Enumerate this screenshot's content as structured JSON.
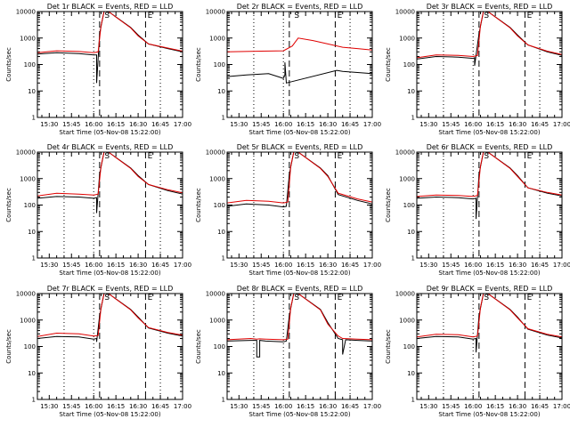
{
  "chart_data": [
    {
      "type": "line",
      "title": "Det 1r BLACK = Events, RED = LLD",
      "ylabel": "Counts/sec",
      "xlabel": "Start Time (05-Nov-08 15:22:00)",
      "y_scale": "log",
      "ylim": [
        1,
        10000
      ],
      "y_ticks": [
        "1",
        "10",
        "100",
        "1000",
        "10000"
      ],
      "x_range": [
        "15:22",
        "17:00"
      ],
      "x_ticks": [
        "15:30",
        "15:45",
        "16:00",
        "16:15",
        "16:30",
        "16:45",
        "17:00"
      ],
      "vertical_dotted_lines": [
        "15:40",
        "16:00",
        "16:45"
      ],
      "vertical_dashed_lines": [
        "16:04",
        "16:35"
      ],
      "markers": [
        {
          "label": "S",
          "x": "16:09"
        },
        {
          "label": "E",
          "x": "16:38"
        }
      ],
      "series": [
        {
          "name": "Events",
          "color": "#000000",
          "x": [
            "15:22",
            "15:35",
            "15:50",
            "16:00",
            "16:02",
            "16:02",
            "16:04",
            "16:07",
            "16:10",
            "16:25",
            "16:30",
            "16:37",
            "16:50",
            "17:00"
          ],
          "y": [
            250,
            280,
            260,
            230,
            230,
            20,
            1500,
            10000,
            10000,
            2500,
            1300,
            600,
            400,
            300
          ]
        },
        {
          "name": "LLD",
          "color": "#e00000",
          "x": [
            "15:22",
            "15:35",
            "15:50",
            "16:00",
            "16:03",
            "16:05",
            "16:07",
            "16:10",
            "16:25",
            "16:30",
            "16:37",
            "16:50",
            "17:00"
          ],
          "y": [
            280,
            330,
            310,
            280,
            300,
            3000,
            10000,
            10000,
            2400,
            1200,
            600,
            420,
            320
          ]
        }
      ]
    },
    {
      "type": "line",
      "title": "Det 2r BLACK = Events, RED = LLD",
      "ylabel": "Counts/sec",
      "xlabel": "Start Time (05-Nov-08 15:22:00)",
      "y_scale": "log",
      "ylim": [
        1,
        10000
      ],
      "y_ticks": [
        "1",
        "10",
        "100",
        "1000",
        "10000"
      ],
      "x_range": [
        "15:22",
        "17:00"
      ],
      "x_ticks": [
        "15:30",
        "15:45",
        "16:00",
        "16:15",
        "16:30",
        "16:45",
        "17:00"
      ],
      "vertical_dotted_lines": [
        "15:40",
        "16:00",
        "16:45"
      ],
      "vertical_dashed_lines": [
        "16:04",
        "16:35"
      ],
      "markers": [
        {
          "label": "S",
          "x": "16:09"
        },
        {
          "label": "E",
          "x": "16:38"
        }
      ],
      "series": [
        {
          "name": "Events",
          "color": "#000000",
          "x": [
            "15:22",
            "15:35",
            "15:50",
            "16:00",
            "16:01",
            "16:01",
            "16:02",
            "16:36",
            "16:40",
            "16:50",
            "17:00"
          ],
          "y": [
            35,
            40,
            45,
            30,
            40,
            120,
            20,
            60,
            55,
            50,
            45
          ]
        },
        {
          "name": "LLD",
          "color": "#e00000",
          "x": [
            "15:22",
            "15:45",
            "16:00",
            "16:06",
            "16:10",
            "16:20",
            "16:30",
            "16:40",
            "16:50",
            "17:00"
          ],
          "y": [
            300,
            320,
            330,
            500,
            1000,
            800,
            600,
            450,
            400,
            350
          ]
        }
      ]
    },
    {
      "type": "line",
      "title": "Det 3r BLACK = Events, RED = LLD",
      "ylabel": "Counts/sec",
      "xlabel": "Start Time (05-Nov-08 15:22:00)",
      "y_scale": "log",
      "ylim": [
        1,
        10000
      ],
      "y_ticks": [
        "1",
        "10",
        "100",
        "1000",
        "10000"
      ],
      "x_range": [
        "15:22",
        "17:00"
      ],
      "x_ticks": [
        "15:30",
        "15:45",
        "16:00",
        "16:15",
        "16:30",
        "16:45",
        "17:00"
      ],
      "vertical_dotted_lines": [
        "15:40",
        "16:00",
        "16:45"
      ],
      "vertical_dashed_lines": [
        "16:04",
        "16:35"
      ],
      "markers": [
        {
          "label": "S",
          "x": "16:09"
        },
        {
          "label": "E",
          "x": "16:38"
        }
      ],
      "series": [
        {
          "name": "Events",
          "color": "#000000",
          "x": [
            "15:22",
            "15:35",
            "15:50",
            "16:00",
            "16:01",
            "16:01",
            "16:04",
            "16:07",
            "16:10",
            "16:25",
            "16:30",
            "16:37",
            "16:50",
            "17:00"
          ],
          "y": [
            160,
            200,
            190,
            170,
            180,
            90,
            1500,
            10000,
            10000,
            2500,
            1300,
            550,
            300,
            220
          ]
        },
        {
          "name": "LLD",
          "color": "#e00000",
          "x": [
            "15:22",
            "15:35",
            "15:50",
            "16:00",
            "16:03",
            "16:05",
            "16:07",
            "16:10",
            "16:25",
            "16:30",
            "16:37",
            "16:50",
            "17:00"
          ],
          "y": [
            180,
            230,
            220,
            200,
            220,
            3000,
            10000,
            10000,
            2400,
            1200,
            550,
            320,
            240
          ]
        }
      ]
    },
    {
      "type": "line",
      "title": "Det 4r BLACK = Events, RED = LLD",
      "ylabel": "Counts/sec",
      "xlabel": "Start Time (05-Nov-08 15:22:00)",
      "y_scale": "log",
      "ylim": [
        1,
        10000
      ],
      "y_ticks": [
        "1",
        "10",
        "100",
        "1000",
        "10000"
      ],
      "x_range": [
        "15:22",
        "17:00"
      ],
      "x_ticks": [
        "15:30",
        "15:45",
        "16:00",
        "16:15",
        "16:30",
        "16:45",
        "17:00"
      ],
      "vertical_dotted_lines": [
        "15:40",
        "16:00",
        "16:45"
      ],
      "vertical_dashed_lines": [
        "16:04",
        "16:35"
      ],
      "markers": [
        {
          "label": "S",
          "x": "16:09"
        },
        {
          "label": "E",
          "x": "16:38"
        }
      ],
      "series": [
        {
          "name": "Events",
          "color": "#000000",
          "x": [
            "15:22",
            "15:35",
            "15:50",
            "16:00",
            "16:02",
            "16:02",
            "16:04",
            "16:07",
            "16:10",
            "16:25",
            "16:30",
            "16:37",
            "16:50",
            "17:00"
          ],
          "y": [
            180,
            210,
            200,
            180,
            190,
            50,
            1500,
            10000,
            10000,
            2500,
            1300,
            600,
            350,
            260
          ]
        },
        {
          "name": "LLD",
          "color": "#e00000",
          "x": [
            "15:22",
            "15:35",
            "15:50",
            "16:00",
            "16:03",
            "16:05",
            "16:07",
            "16:10",
            "16:25",
            "16:30",
            "16:37",
            "16:50",
            "17:00"
          ],
          "y": [
            220,
            280,
            260,
            240,
            260,
            3000,
            10000,
            10000,
            2400,
            1200,
            600,
            380,
            290
          ]
        }
      ]
    },
    {
      "type": "line",
      "title": "Det 5r BLACK = Events, RED = LLD",
      "ylabel": "Counts/sec",
      "xlabel": "Start Time (05-Nov-08 15:22:00)",
      "y_scale": "log",
      "ylim": [
        1,
        10000
      ],
      "y_ticks": [
        "1",
        "10",
        "100",
        "1000",
        "10000"
      ],
      "x_range": [
        "15:22",
        "17:00"
      ],
      "x_ticks": [
        "15:30",
        "15:45",
        "16:00",
        "16:15",
        "16:30",
        "16:45",
        "17:00"
      ],
      "vertical_dotted_lines": [
        "15:40",
        "16:00",
        "16:45"
      ],
      "vertical_dashed_lines": [
        "16:04",
        "16:35"
      ],
      "markers": [
        {
          "label": "S",
          "x": "16:09"
        },
        {
          "label": "E",
          "x": "16:38"
        }
      ],
      "series": [
        {
          "name": "Events",
          "color": "#000000",
          "x": [
            "15:22",
            "15:35",
            "15:50",
            "16:00",
            "16:02",
            "16:04",
            "16:07",
            "16:10",
            "16:25",
            "16:30",
            "16:37",
            "16:50",
            "17:00"
          ],
          "y": [
            90,
            110,
            100,
            85,
            90,
            1500,
            10000,
            10000,
            2500,
            1300,
            250,
            150,
            110
          ]
        },
        {
          "name": "LLD",
          "color": "#e00000",
          "x": [
            "15:22",
            "15:35",
            "15:50",
            "16:00",
            "16:03",
            "16:05",
            "16:07",
            "16:10",
            "16:25",
            "16:30",
            "16:37",
            "16:50",
            "17:00"
          ],
          "y": [
            120,
            150,
            140,
            120,
            130,
            3000,
            10000,
            10000,
            2400,
            1200,
            280,
            170,
            130
          ]
        }
      ]
    },
    {
      "type": "line",
      "title": "Det 6r BLACK = Events, RED = LLD",
      "ylabel": "Counts/sec",
      "xlabel": "Start Time (05-Nov-08 15:22:00)",
      "y_scale": "log",
      "ylim": [
        1,
        10000
      ],
      "y_ticks": [
        "1",
        "10",
        "100",
        "1000",
        "10000"
      ],
      "x_range": [
        "15:22",
        "17:00"
      ],
      "x_ticks": [
        "15:30",
        "15:45",
        "16:00",
        "16:15",
        "16:30",
        "16:45",
        "17:00"
      ],
      "vertical_dotted_lines": [
        "15:40",
        "16:00",
        "16:45"
      ],
      "vertical_dashed_lines": [
        "16:04",
        "16:35"
      ],
      "markers": [
        {
          "label": "S",
          "x": "16:09"
        },
        {
          "label": "E",
          "x": "16:38"
        }
      ],
      "series": [
        {
          "name": "Events",
          "color": "#000000",
          "x": [
            "15:22",
            "15:35",
            "15:50",
            "16:00",
            "16:02",
            "16:02",
            "16:04",
            "16:07",
            "16:10",
            "16:25",
            "16:30",
            "16:37",
            "16:50",
            "17:00"
          ],
          "y": [
            180,
            200,
            190,
            170,
            180,
            30,
            1500,
            10000,
            10000,
            2500,
            1300,
            450,
            280,
            220
          ]
        },
        {
          "name": "LLD",
          "color": "#e00000",
          "x": [
            "15:22",
            "15:35",
            "15:50",
            "16:00",
            "16:03",
            "16:05",
            "16:07",
            "16:10",
            "16:25",
            "16:30",
            "16:37",
            "16:50",
            "17:00"
          ],
          "y": [
            210,
            240,
            230,
            210,
            230,
            3000,
            10000,
            10000,
            2400,
            1200,
            450,
            300,
            240
          ]
        }
      ]
    },
    {
      "type": "line",
      "title": "Det 7r BLACK = Events, RED = LLD",
      "ylabel": "Counts/sec",
      "xlabel": "Start Time (05-Nov-08 15:22:00)",
      "y_scale": "log",
      "ylim": [
        1,
        10000
      ],
      "y_ticks": [
        "1",
        "10",
        "100",
        "1000",
        "10000"
      ],
      "x_range": [
        "15:22",
        "17:00"
      ],
      "x_ticks": [
        "15:30",
        "15:45",
        "16:00",
        "16:15",
        "16:30",
        "16:45",
        "17:00"
      ],
      "vertical_dotted_lines": [
        "15:40",
        "16:00",
        "16:45"
      ],
      "vertical_dashed_lines": [
        "16:04",
        "16:35"
      ],
      "markers": [
        {
          "label": "S",
          "x": "16:09"
        },
        {
          "label": "E",
          "x": "16:38"
        }
      ],
      "series": [
        {
          "name": "Events",
          "color": "#000000",
          "x": [
            "15:22",
            "15:35",
            "15:50",
            "16:00",
            "16:02",
            "16:02",
            "16:04",
            "16:07",
            "16:10",
            "16:25",
            "16:30",
            "16:37",
            "16:50",
            "17:00"
          ],
          "y": [
            200,
            240,
            230,
            190,
            200,
            150,
            1500,
            10000,
            10000,
            2500,
            1300,
            500,
            320,
            250
          ]
        },
        {
          "name": "LLD",
          "color": "#e00000",
          "x": [
            "15:22",
            "15:35",
            "15:50",
            "16:00",
            "16:03",
            "16:05",
            "16:07",
            "16:10",
            "16:25",
            "16:30",
            "16:37",
            "16:50",
            "17:00"
          ],
          "y": [
            240,
            320,
            300,
            250,
            260,
            3000,
            10000,
            10000,
            2400,
            1200,
            520,
            340,
            270
          ]
        }
      ]
    },
    {
      "type": "line",
      "title": "Det 8r BLACK = Events, RED = LLD",
      "ylabel": "Counts/sec",
      "xlabel": "Start Time (05-Nov-08 15:22:00)",
      "y_scale": "log",
      "ylim": [
        1,
        10000
      ],
      "y_ticks": [
        "1",
        "10",
        "100",
        "1000",
        "10000"
      ],
      "x_range": [
        "15:22",
        "17:00"
      ],
      "x_ticks": [
        "15:30",
        "15:45",
        "16:00",
        "16:15",
        "16:30",
        "16:45",
        "17:00"
      ],
      "vertical_dotted_lines": [
        "15:40",
        "16:00",
        "16:45"
      ],
      "vertical_dashed_lines": [
        "16:04",
        "16:35"
      ],
      "markers": [
        {
          "label": "S",
          "x": "16:09"
        },
        {
          "label": "E",
          "x": "16:38"
        }
      ],
      "series": [
        {
          "name": "Events",
          "color": "#000000",
          "x": [
            "15:22",
            "15:38",
            "15:42",
            "15:42",
            "15:44",
            "15:44",
            "15:48",
            "16:00",
            "16:02",
            "16:04",
            "16:07",
            "16:10",
            "16:25",
            "16:30",
            "16:37",
            "16:40",
            "16:40",
            "16:42",
            "16:50",
            "17:00"
          ],
          "y": [
            160,
            170,
            170,
            40,
            40,
            170,
            160,
            150,
            160,
            1500,
            10000,
            10000,
            2500,
            800,
            200,
            180,
            50,
            180,
            170,
            160
          ]
        },
        {
          "name": "LLD",
          "color": "#e00000",
          "x": [
            "15:22",
            "15:38",
            "15:42",
            "15:44",
            "15:48",
            "16:00",
            "16:03",
            "16:05",
            "16:07",
            "16:10",
            "16:25",
            "16:30",
            "16:37",
            "16:40",
            "16:50",
            "17:00"
          ],
          "y": [
            180,
            200,
            190,
            195,
            190,
            180,
            190,
            3000,
            10000,
            10000,
            2400,
            700,
            250,
            200,
            190,
            180
          ]
        }
      ]
    },
    {
      "type": "line",
      "title": "Det 9r BLACK = Events, RED = LLD",
      "ylabel": "Counts/sec",
      "xlabel": "Start Time (05-Nov-08 15:22:00)",
      "y_scale": "log",
      "ylim": [
        1,
        10000
      ],
      "y_ticks": [
        "1",
        "10",
        "100",
        "1000",
        "10000"
      ],
      "x_range": [
        "15:22",
        "17:00"
      ],
      "x_ticks": [
        "15:30",
        "15:45",
        "16:00",
        "16:15",
        "16:30",
        "16:45",
        "17:00"
      ],
      "vertical_dotted_lines": [
        "15:40",
        "16:00",
        "16:45"
      ],
      "vertical_dashed_lines": [
        "16:04",
        "16:35"
      ],
      "markers": [
        {
          "label": "S",
          "x": "16:09"
        },
        {
          "label": "E",
          "x": "16:38"
        }
      ],
      "series": [
        {
          "name": "Events",
          "color": "#000000",
          "x": [
            "15:22",
            "15:35",
            "15:50",
            "16:00",
            "16:02",
            "16:02",
            "16:04",
            "16:07",
            "16:10",
            "16:25",
            "16:30",
            "16:37",
            "16:50",
            "17:00"
          ],
          "y": [
            200,
            240,
            230,
            190,
            200,
            60,
            1500,
            10000,
            10000,
            2500,
            1300,
            450,
            270,
            210
          ]
        },
        {
          "name": "LLD",
          "color": "#e00000",
          "x": [
            "15:22",
            "15:35",
            "15:50",
            "16:00",
            "16:03",
            "16:05",
            "16:07",
            "16:10",
            "16:25",
            "16:30",
            "16:37",
            "16:50",
            "17:00"
          ],
          "y": [
            230,
            290,
            280,
            230,
            250,
            3000,
            10000,
            10000,
            2400,
            1200,
            470,
            290,
            230
          ]
        }
      ]
    }
  ]
}
